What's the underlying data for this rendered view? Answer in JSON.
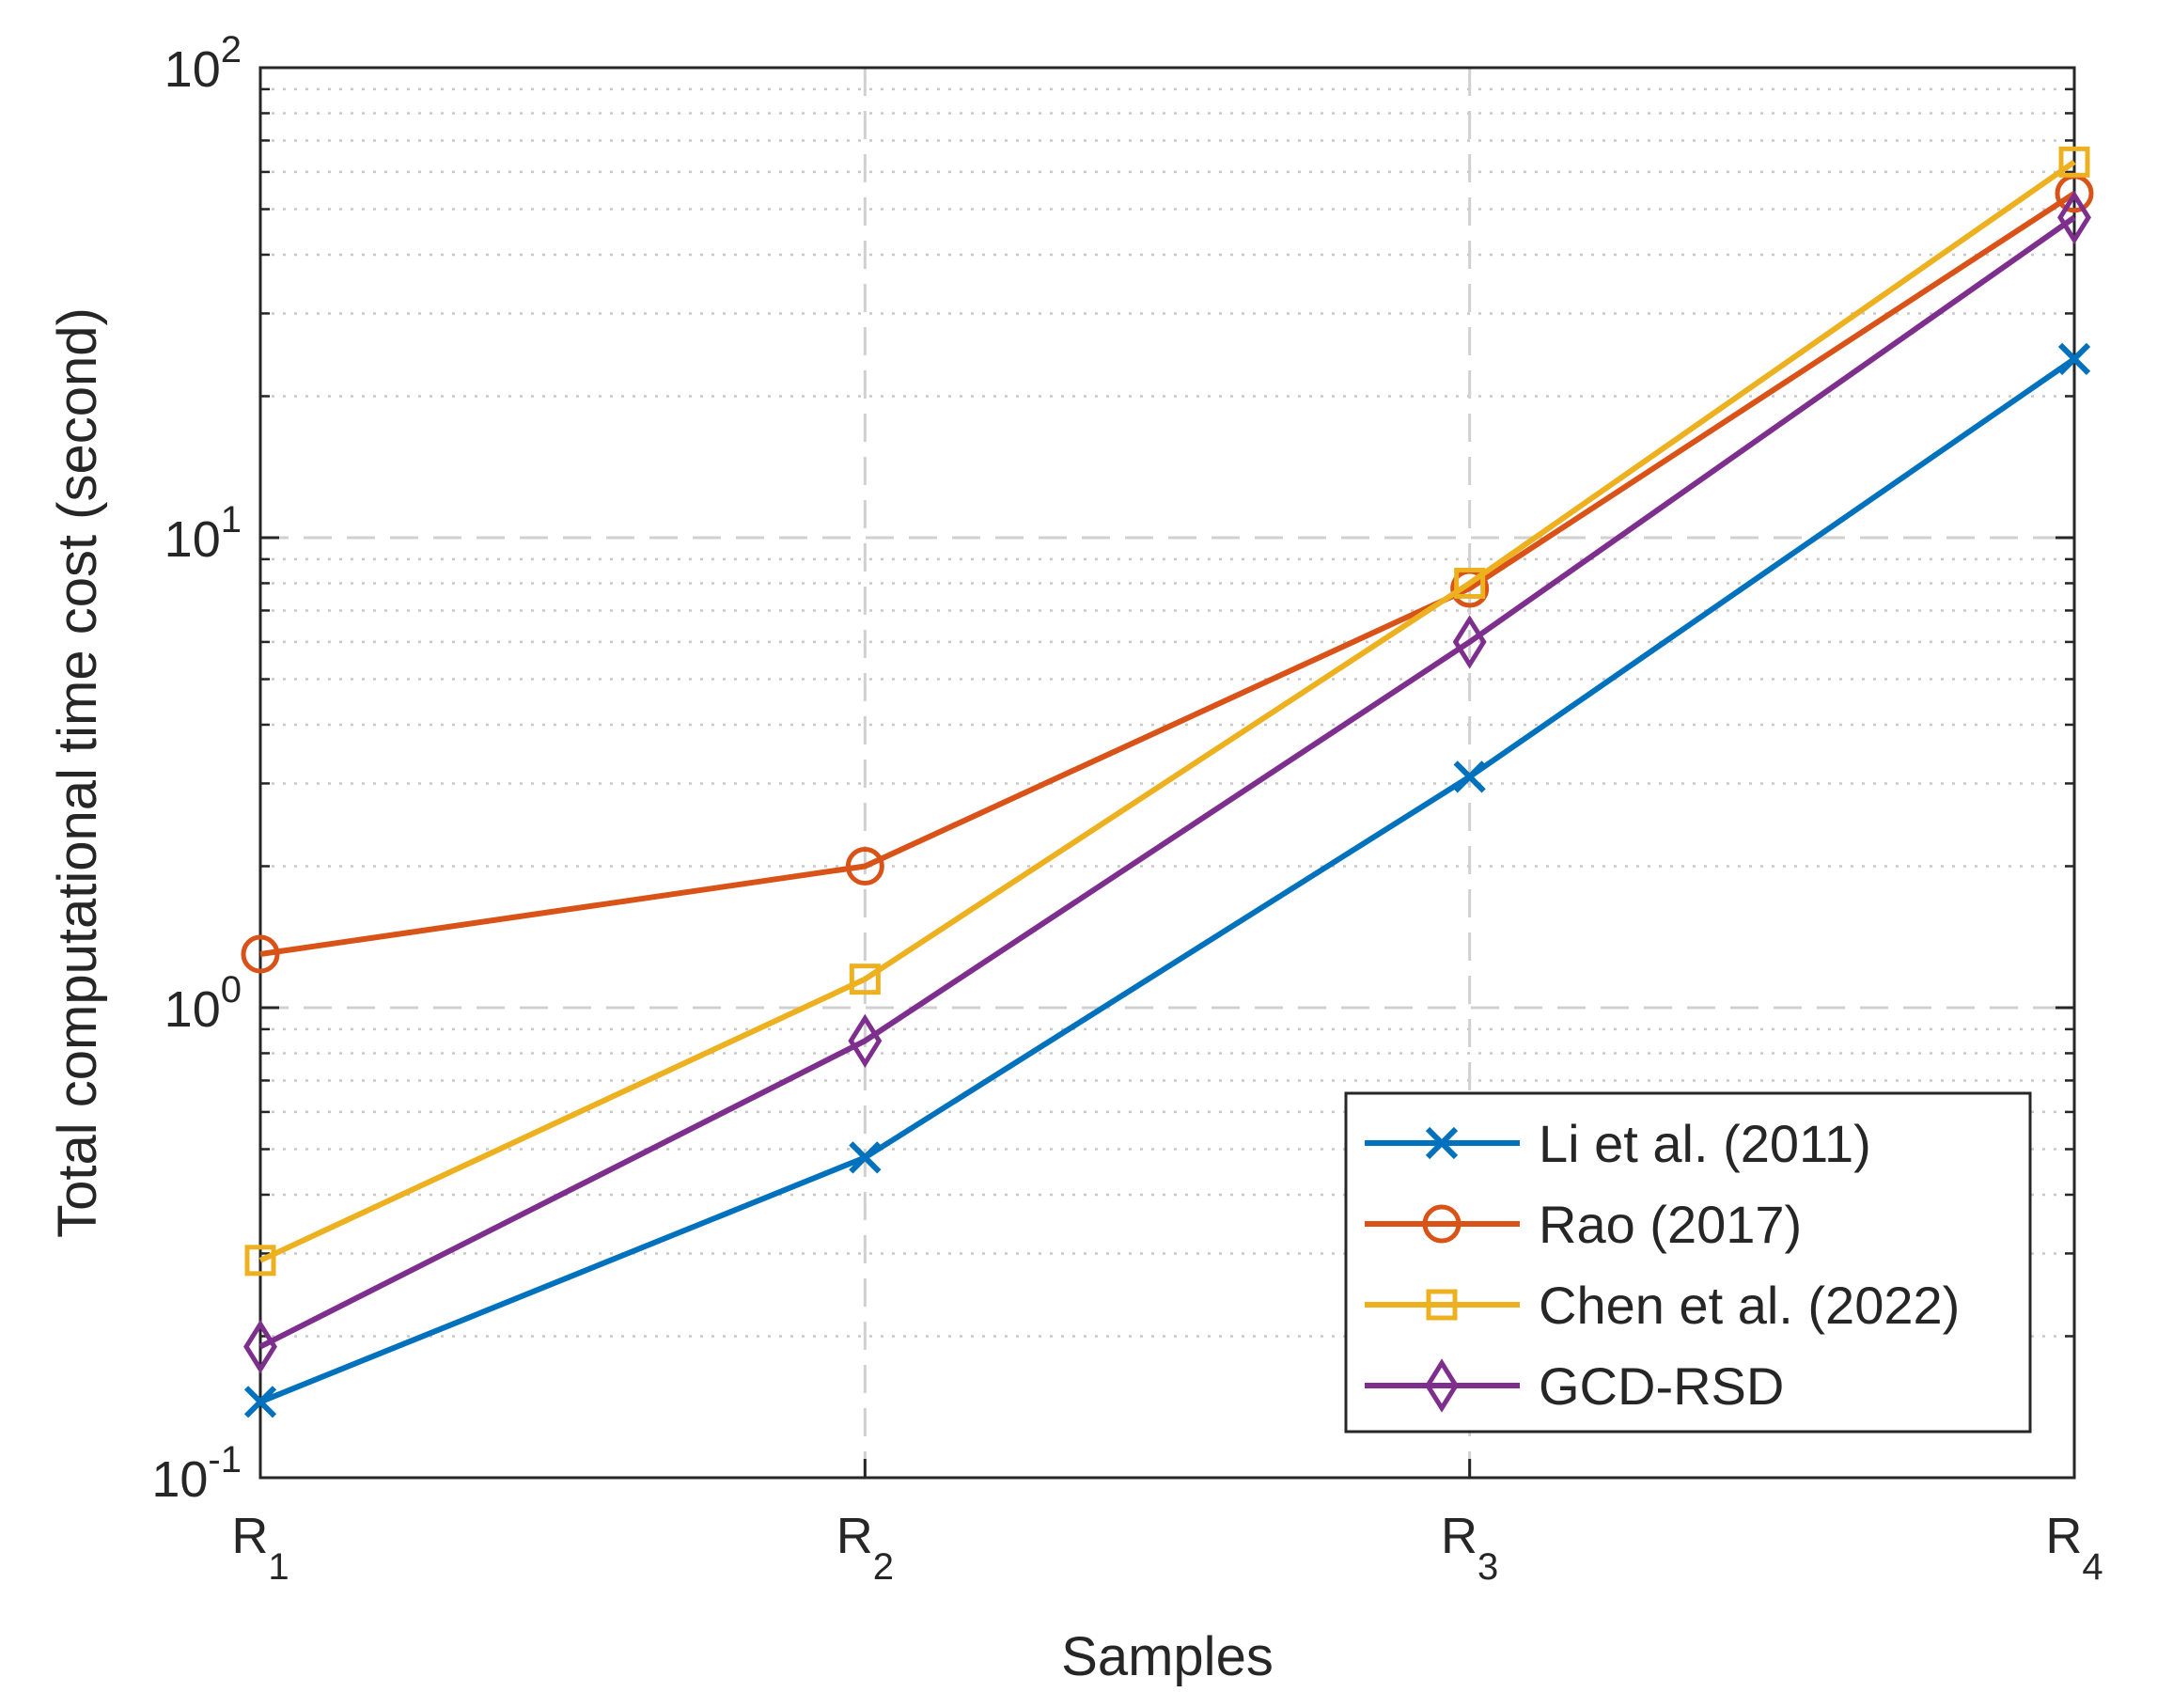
{
  "chart_data": {
    "type": "line",
    "title": "",
    "xlabel": "Samples",
    "ylabel": "Total computational time cost (second)",
    "yscale": "log",
    "ylim": [
      0.1,
      100
    ],
    "y_ticks": [
      {
        "base": "10",
        "exp": "-1",
        "value": 0.1
      },
      {
        "base": "10",
        "exp": "0",
        "value": 1
      },
      {
        "base": "10",
        "exp": "1",
        "value": 10
      },
      {
        "base": "10",
        "exp": "2",
        "value": 100
      }
    ],
    "categories": [
      {
        "main": "R",
        "sub": "1"
      },
      {
        "main": "R",
        "sub": "2"
      },
      {
        "main": "R",
        "sub": "3"
      },
      {
        "main": "R",
        "sub": "4"
      }
    ],
    "grid": true,
    "legend_position": "bottom-right",
    "series": [
      {
        "name": "Li et al. (2011)",
        "color": "#0072BD",
        "marker": "x",
        "values": [
          0.145,
          0.48,
          3.1,
          24
        ]
      },
      {
        "name": "Rao (2017)",
        "color": "#D95319",
        "marker": "o",
        "values": [
          1.3,
          2.0,
          7.8,
          54
        ]
      },
      {
        "name": "Chen et al. (2022)",
        "color": "#EDB120",
        "marker": "s",
        "values": [
          0.29,
          1.15,
          8.0,
          63
        ]
      },
      {
        "name": "GCD-RSD",
        "color": "#7E2F8E",
        "marker": "d",
        "values": [
          0.19,
          0.85,
          6.0,
          48
        ]
      }
    ]
  }
}
